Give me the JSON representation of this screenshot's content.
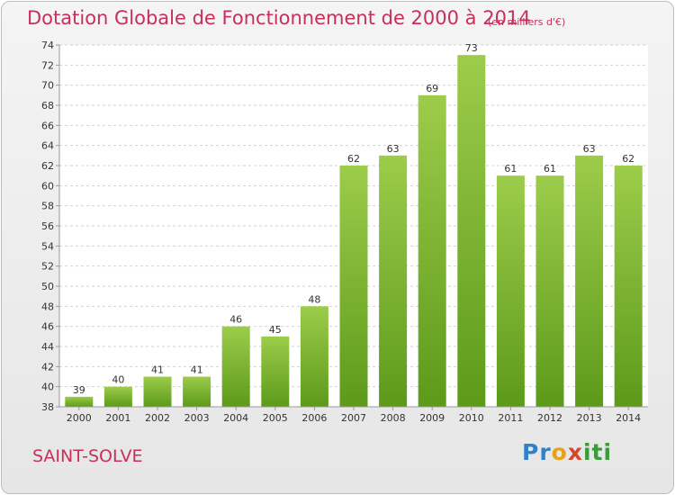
{
  "header": {
    "title": "Dotation Globale de Fonctionnement de 2000 à 2014",
    "unit": "(en milliers d'€)"
  },
  "footer": {
    "town": "SAINT-SOLVE",
    "logo": [
      "Pr",
      "o",
      "x",
      "iti"
    ]
  },
  "colors": {
    "bar_top": "#9ccc4a",
    "bar_bottom": "#5d9a1a",
    "text_accent": "#c8305a",
    "grid": "#d2d2d2"
  },
  "chart_data": {
    "type": "bar",
    "categories": [
      "2000",
      "2001",
      "2002",
      "2003",
      "2004",
      "2005",
      "2006",
      "2007",
      "2008",
      "2009",
      "2010",
      "2011",
      "2012",
      "2013",
      "2014"
    ],
    "values": [
      39,
      40,
      41,
      41,
      46,
      45,
      48,
      62,
      63,
      69,
      73,
      61,
      61,
      63,
      62
    ],
    "title": "Dotation Globale de Fonctionnement de 2000 à 2014",
    "subtitle": "(en milliers d'€)",
    "xlabel": "",
    "ylabel": "",
    "ylim": [
      38,
      74
    ],
    "yticks": [
      38,
      40,
      42,
      44,
      46,
      48,
      50,
      52,
      54,
      56,
      58,
      60,
      62,
      64,
      66,
      68,
      70,
      72,
      74
    ],
    "grid": true,
    "legend": "none"
  }
}
